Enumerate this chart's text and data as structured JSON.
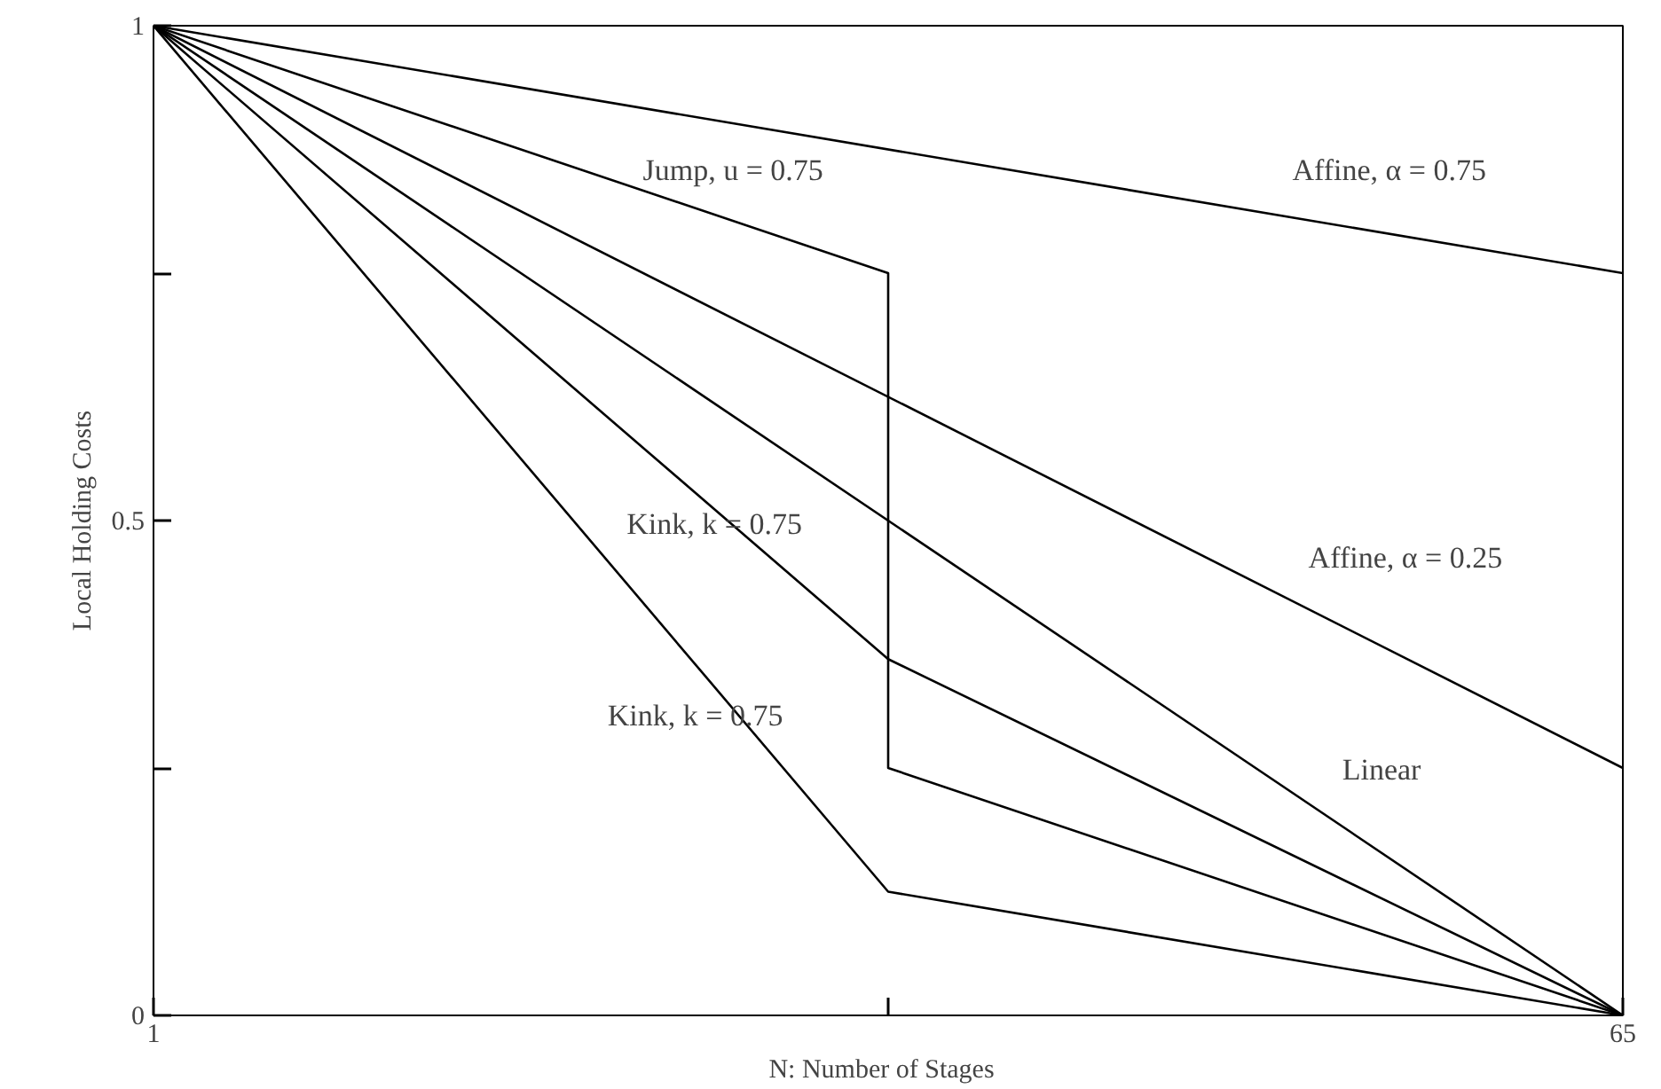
{
  "chart_data": {
    "type": "line",
    "xlabel": "N:   Number of Stages",
    "ylabel": "Local Holding Costs",
    "xlim": [
      1,
      65
    ],
    "ylim": [
      0,
      1
    ],
    "xticks": [
      1,
      {
        "value": 33,
        "label": null
      },
      65
    ],
    "yticks": [
      0,
      {
        "value": 0.25,
        "label": null
      },
      0.5,
      {
        "value": 0.75,
        "label": null
      },
      1
    ],
    "grid": false,
    "marker": "none",
    "line_style": "solid",
    "series": [
      {
        "color": "#000000",
        "x": [
          1,
          65
        ],
        "values": [
          1,
          0.75
        ]
      },
      {
        "color": "#000000",
        "x": [
          1,
          65
        ],
        "values": [
          1,
          0.25
        ]
      },
      {
        "color": "#000000",
        "x": [
          1,
          65
        ],
        "values": [
          1,
          0
        ]
      },
      {
        "color": "#000000",
        "x": [
          1,
          33,
          33,
          65
        ],
        "values": [
          1,
          0.75,
          0.25,
          0
        ]
      },
      {
        "color": "#000000",
        "x": [
          1,
          33,
          65
        ],
        "values": [
          1,
          0.36,
          0
        ]
      },
      {
        "color": "#000000",
        "x": [
          1,
          33,
          65
        ],
        "values": [
          1,
          0.125,
          0
        ]
      }
    ],
    "annotations": [
      "Jump, u = 0.75",
      "Affine,  α = 0.75",
      "Kink, k = 0.75",
      "Affine, α = 0.25",
      "Kink, k = 0.75",
      "Linear"
    ]
  }
}
